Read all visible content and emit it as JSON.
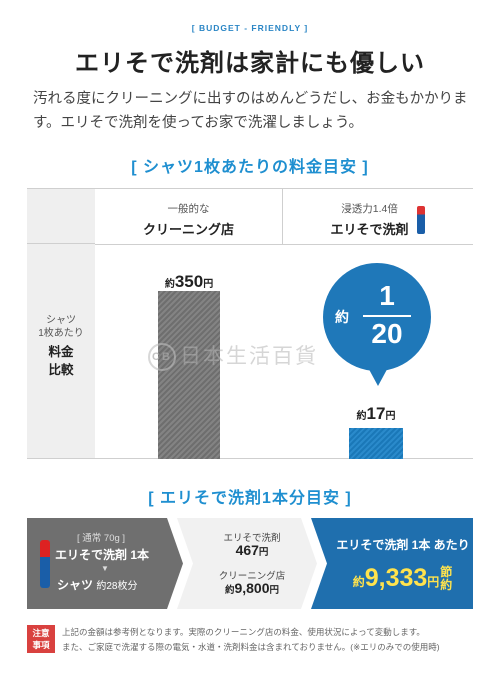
{
  "header": {
    "tagline": "[ BUDGET - FRIENDLY ]",
    "headline": "エリそで洗剤は家計にも優しい",
    "intro": "汚れる度にクリーニングに出すのはめんどうだし、お金もかかります。エリそで洗剤を使ってお家で洗濯しましょう。"
  },
  "comparison": {
    "section_title": "[ シャツ1枚あたりの料金目安 ]",
    "row_label_sub": "シャツ\n1枚あたり",
    "row_label_main": "料金\n比較",
    "col1_sub": "一般的な",
    "col1_main": "クリーニング店",
    "col2_sub": "浸透力1.4倍",
    "col2_main": "エリそで洗剤",
    "bar1_prefix": "約",
    "bar1_value": "350",
    "bar1_unit": "円",
    "bar2_prefix": "約",
    "bar2_value": "17",
    "bar2_unit": "円",
    "bubble_prefix": "約",
    "bubble_numerator": "1",
    "bubble_denominator": "20"
  },
  "chart_data": {
    "type": "bar",
    "categories": [
      "クリーニング店",
      "エリそで洗剤"
    ],
    "values": [
      350,
      17
    ],
    "title": "シャツ1枚あたりの料金目安",
    "ylabel": "",
    "xlabel": ""
  },
  "watermark": {
    "logo": "CB",
    "text": "日本生活百貨"
  },
  "summary": {
    "section_title": "[ エリそで洗剤1本分目安 ]",
    "note": "[ 通常 70g ]",
    "product": "エリそで洗剤 1本",
    "arrow": "▼",
    "shirts_label": "シャツ",
    "shirts_value": "約28枚分",
    "detergent_label": "エリそで洗剤",
    "detergent_value": "467",
    "detergent_unit": "円",
    "cleaning_label": "クリーニング店",
    "cleaning_prefix": "約",
    "cleaning_value": "9,800",
    "cleaning_unit": "円",
    "savings_title": "エリそで洗剤 1本 あたり",
    "savings_prefix": "約",
    "savings_value": "9,333",
    "savings_unit": "円",
    "savings_suffix": "節約"
  },
  "footer": {
    "caution_label": "注意\n事項",
    "notes_line1": "上記の金額は参考例となります。実際のクリーニング店の料金、使用状況によって変動します。",
    "notes_line2": "また、ご家庭で洗濯する際の電気・水道・洗剤料金は含まれておりません。(※エリのみでの使用時)"
  },
  "colors": {
    "accent_blue": "#1f8fd0",
    "dark_blue": "#1f6fae",
    "gray_bar": "#777777",
    "highlight_yellow": "#ffe34d",
    "caution_red": "#d9413f"
  }
}
